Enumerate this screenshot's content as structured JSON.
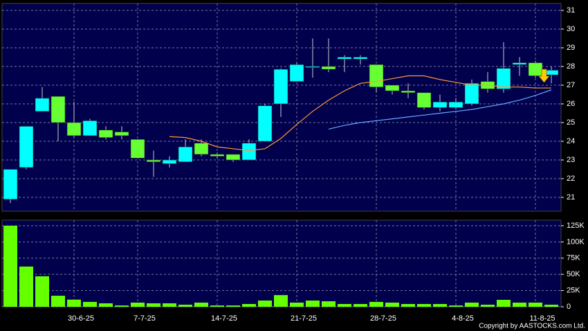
{
  "chart_data": [
    {
      "type": "candlestick",
      "open": [
        20.9,
        22.6,
        25.6,
        26.4,
        25.0,
        24.3,
        24.6,
        24.5,
        24.1,
        23.0,
        22.8,
        22.9,
        23.9,
        23.3,
        23.3,
        23.0,
        24.0,
        26.0,
        27.2,
        28.0,
        28.0,
        28.4,
        28.4,
        28.1,
        27.0,
        26.7,
        26.6,
        25.8,
        25.8,
        26.0,
        27.2,
        26.8,
        28.1,
        28.2,
        27.55
      ],
      "high": [
        22.5,
        24.8,
        26.9,
        26.4,
        26.1,
        25.2,
        24.8,
        24.8,
        24.1,
        23.5,
        23.2,
        24.1,
        24.1,
        23.4,
        23.3,
        24.1,
        26.0,
        27.9,
        28.2,
        29.5,
        29.5,
        28.6,
        28.6,
        28.1,
        27.0,
        27.1,
        26.6,
        26.5,
        26.3,
        27.3,
        27.7,
        29.3,
        28.5,
        28.3,
        28.0
      ],
      "low": [
        20.7,
        22.5,
        25.6,
        24.0,
        24.2,
        24.3,
        24.1,
        24.1,
        23.1,
        22.1,
        22.6,
        22.9,
        23.2,
        23.1,
        22.9,
        23.0,
        24.0,
        25.3,
        27.2,
        27.4,
        27.7,
        27.7,
        28.1,
        26.6,
        26.5,
        26.3,
        25.7,
        25.6,
        25.7,
        25.9,
        26.6,
        26.6,
        27.5,
        27.4,
        27.1
      ],
      "close": [
        22.5,
        24.8,
        26.3,
        25.0,
        24.3,
        25.1,
        24.2,
        24.3,
        23.1,
        22.9,
        23.0,
        23.7,
        23.3,
        23.2,
        23.0,
        23.9,
        25.9,
        27.85,
        28.1,
        28.0,
        27.85,
        28.5,
        28.5,
        26.9,
        26.7,
        26.6,
        25.8,
        26.1,
        26.1,
        27.1,
        26.8,
        27.9,
        28.2,
        27.5,
        27.8
      ],
      "up_color": "#00ffff",
      "down_color": "#66ff33",
      "series": [
        {
          "color": "#ff9933",
          "values": [
            null,
            null,
            null,
            null,
            null,
            null,
            null,
            null,
            null,
            null,
            24.25,
            24.2,
            24.0,
            23.7,
            23.6,
            23.5,
            23.6,
            24.15,
            24.9,
            25.6,
            26.2,
            26.7,
            27.1,
            27.2,
            27.35,
            27.5,
            27.5,
            27.3,
            27.15,
            27.0,
            27.0,
            26.9,
            26.9,
            26.85,
            26.85
          ]
        },
        {
          "color": "#66aaff",
          "values": [
            null,
            null,
            null,
            null,
            null,
            null,
            null,
            null,
            null,
            null,
            null,
            null,
            null,
            null,
            null,
            null,
            null,
            null,
            null,
            null,
            24.65,
            24.85,
            25.0,
            25.1,
            25.2,
            25.3,
            25.4,
            25.5,
            25.6,
            25.7,
            25.85,
            26.0,
            26.2,
            26.45,
            26.75
          ]
        }
      ],
      "ylim": [
        20.26,
        31.37
      ],
      "yticks": [
        21,
        22,
        23,
        24,
        25,
        26,
        27,
        28,
        29,
        30,
        31
      ],
      "grid": true
    },
    {
      "type": "bar",
      "categories": [
        null,
        null,
        null,
        null,
        "30-6-25",
        null,
        null,
        null,
        "7-7-25",
        null,
        null,
        null,
        null,
        "14-7-25",
        null,
        null,
        null,
        null,
        "21-7-25",
        null,
        null,
        null,
        null,
        "28-7-25",
        null,
        null,
        null,
        null,
        "4-8-25",
        null,
        null,
        null,
        null,
        "11-8-25",
        null
      ],
      "values": [
        125000,
        62000,
        47000,
        17000,
        11000,
        7500,
        5300,
        2000,
        6400,
        5300,
        5300,
        3200,
        6400,
        2000,
        2000,
        4300,
        9600,
        18000,
        6400,
        9600,
        8500,
        4300,
        4300,
        7500,
        6400,
        4300,
        4300,
        4300,
        2000,
        6400,
        3200,
        10700,
        6400,
        6400,
        3200
      ],
      "color": "#66ff00",
      "ylim": [
        0,
        133500
      ],
      "yticks": [
        0,
        {
          "value": 25000,
          "label": "25K"
        },
        {
          "value": 50000,
          "label": "50K"
        },
        {
          "value": 75000,
          "label": "75K"
        },
        {
          "value": 100000,
          "label": "100K"
        },
        {
          "value": 125000,
          "label": "125K"
        }
      ],
      "grid": true
    }
  ],
  "copyright": "Copyright by AASTOCKS.com Ltd."
}
